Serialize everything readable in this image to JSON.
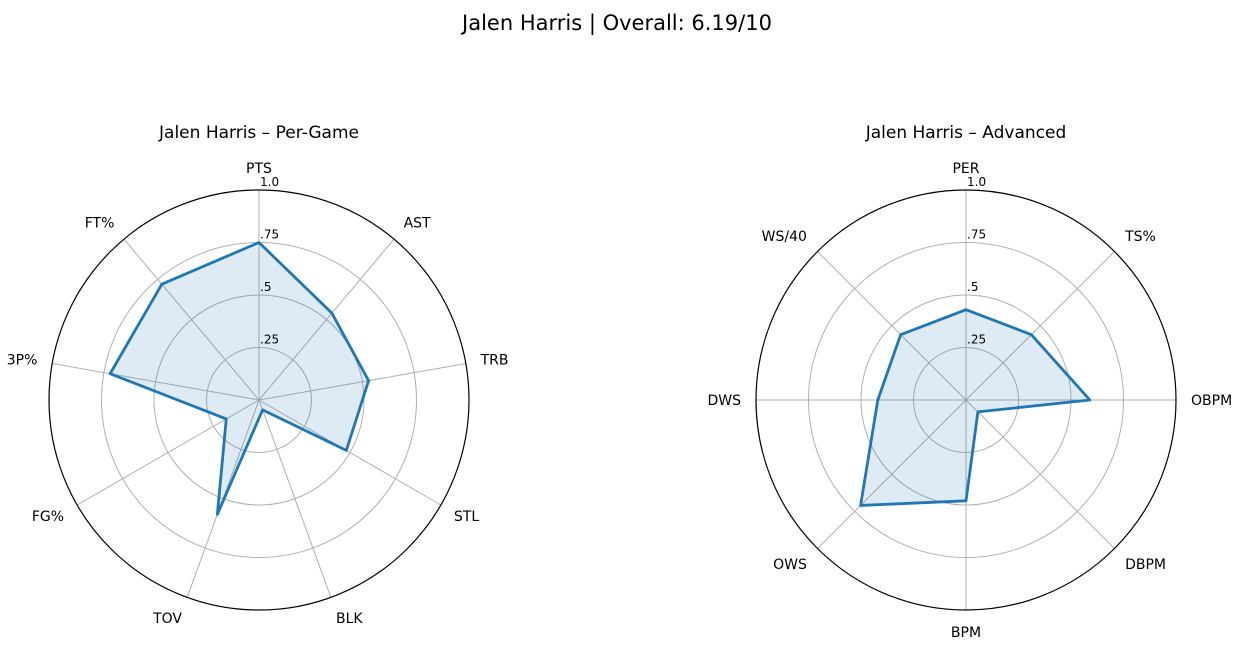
{
  "figure": {
    "suptitle": "Jalen Harris | Overall: 6.19/10"
  },
  "chart_data": [
    {
      "type": "radar",
      "title": "Jalen Harris – Per-Game",
      "categories": [
        "PTS",
        "AST",
        "TRB",
        "STL",
        "BLK",
        "TOV",
        "FG%",
        "3P%",
        "FT%"
      ],
      "values": [
        0.75,
        0.54,
        0.53,
        0.48,
        0.05,
        0.58,
        0.18,
        0.72,
        0.72
      ],
      "rlim": [
        0,
        1.0
      ],
      "rticks": [
        0.25,
        0.5,
        0.75,
        1.0
      ],
      "rtick_labels": [
        ".25",
        ".5",
        ".75",
        "1.0"
      ],
      "grid": true,
      "line_color": "#1f77b4",
      "fill_color": "#1f77b4",
      "fill_alpha": 0.15
    },
    {
      "type": "radar",
      "title": "Jalen Harris – Advanced",
      "categories": [
        "PER",
        "TS%",
        "OBPM",
        "DBPM",
        "BPM",
        "OWS",
        "DWS",
        "WS/40"
      ],
      "values": [
        0.43,
        0.44,
        0.59,
        0.08,
        0.48,
        0.71,
        0.42,
        0.44
      ],
      "rlim": [
        0,
        1.0
      ],
      "rticks": [
        0.25,
        0.5,
        0.75,
        1.0
      ],
      "rtick_labels": [
        ".25",
        ".5",
        ".75",
        "1.0"
      ],
      "grid": true,
      "line_color": "#1f77b4",
      "fill_color": "#1f77b4",
      "fill_alpha": 0.15
    }
  ]
}
